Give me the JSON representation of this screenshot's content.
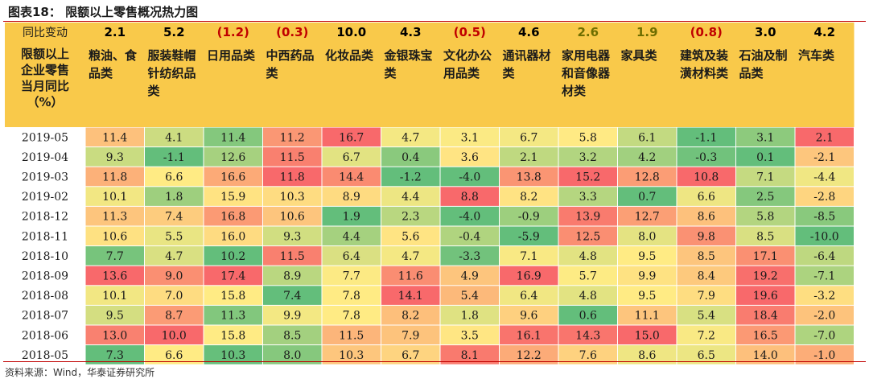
{
  "title": "图表18： 限额以上零售概况热力图",
  "source": "资料来源：Wind，华泰证券研究所",
  "chart_data": {
    "type": "heatmap",
    "change_label": "同比变动",
    "corner_label": "限额以上企业零售当月同比（%）",
    "columns": [
      {
        "name": "粮油、食品类",
        "change": "2.1",
        "change_color": "#000000"
      },
      {
        "name": "服装鞋帽针纺织品类",
        "change": "5.2",
        "change_color": "#000000"
      },
      {
        "name": "日用品类",
        "change": "(1.2)",
        "change_color": "#c00000"
      },
      {
        "name": "中西药品类",
        "change": "(0.3)",
        "change_color": "#c00000"
      },
      {
        "name": "化妆品类",
        "change": "10.0",
        "change_color": "#000000"
      },
      {
        "name": "金银珠宝类",
        "change": "4.3",
        "change_color": "#000000"
      },
      {
        "name": "文化办公用品类",
        "change": "(0.5)",
        "change_color": "#c00000"
      },
      {
        "name": "通讯器材类",
        "change": "4.6",
        "change_color": "#000000"
      },
      {
        "name": "家用电器和音像器材类",
        "change": "2.6",
        "change_color": "#6e6e00"
      },
      {
        "name": "家具类",
        "change": "1.9",
        "change_color": "#6e6e00"
      },
      {
        "name": "建筑及装潢材料类",
        "change": "(0.8)",
        "change_color": "#c00000"
      },
      {
        "name": "石油及制品类",
        "change": "3.0",
        "change_color": "#000000"
      },
      {
        "name": "汽车类",
        "change": "4.2",
        "change_color": "#000000"
      }
    ],
    "rows": [
      "2019-05",
      "2019-04",
      "2019-03",
      "2019-02",
      "2018-12",
      "2018-11",
      "2018-10",
      "2018-09",
      "2018-08",
      "2018-07",
      "2018-06",
      "2018-05"
    ],
    "values": [
      [
        11.4,
        4.1,
        11.4,
        11.2,
        16.7,
        4.7,
        3.1,
        6.7,
        5.8,
        6.1,
        -1.1,
        3.1,
        2.1
      ],
      [
        9.3,
        -1.1,
        12.6,
        11.5,
        6.7,
        0.4,
        3.6,
        2.1,
        3.2,
        4.2,
        -0.3,
        0.1,
        -2.1
      ],
      [
        11.8,
        6.6,
        16.6,
        11.8,
        14.4,
        -1.2,
        -4.0,
        13.8,
        15.2,
        12.8,
        10.8,
        7.1,
        -4.4
      ],
      [
        10.1,
        1.8,
        15.9,
        10.3,
        8.9,
        4.4,
        8.8,
        8.2,
        3.3,
        0.7,
        6.6,
        2.5,
        -2.8
      ],
      [
        11.3,
        7.4,
        16.8,
        10.6,
        1.9,
        2.3,
        -4.0,
        -0.9,
        13.9,
        12.7,
        8.6,
        5.8,
        -8.5
      ],
      [
        10.6,
        5.5,
        16.0,
        9.3,
        4.4,
        5.6,
        -0.4,
        -5.9,
        12.5,
        8.0,
        9.8,
        8.5,
        -10.0
      ],
      [
        7.7,
        4.7,
        10.2,
        11.5,
        6.4,
        4.7,
        -3.3,
        7.1,
        4.8,
        9.5,
        8.5,
        17.1,
        -6.4
      ],
      [
        13.6,
        9.0,
        17.4,
        8.9,
        7.7,
        11.6,
        4.9,
        16.9,
        5.7,
        9.9,
        8.4,
        19.2,
        -7.1
      ],
      [
        10.1,
        7.0,
        15.8,
        7.4,
        7.8,
        14.1,
        5.4,
        6.4,
        4.8,
        9.5,
        7.9,
        19.6,
        -3.2
      ],
      [
        9.5,
        8.7,
        11.3,
        9.9,
        7.8,
        8.2,
        1.8,
        9.6,
        0.6,
        11.1,
        5.4,
        18.4,
        -2.0
      ],
      [
        13.0,
        10.0,
        15.8,
        8.5,
        11.5,
        7.9,
        3.5,
        16.1,
        14.3,
        15.0,
        7.2,
        16.5,
        -7.0
      ],
      [
        7.3,
        6.6,
        10.3,
        8.0,
        10.3,
        6.7,
        8.1,
        12.2,
        7.6,
        8.6,
        6.5,
        14.0,
        -1.0
      ]
    ],
    "colors": {
      "header_bg": "#f9c94a",
      "high": "#f8696b",
      "mid": "#ffeb84",
      "low": "#63be7b"
    }
  }
}
